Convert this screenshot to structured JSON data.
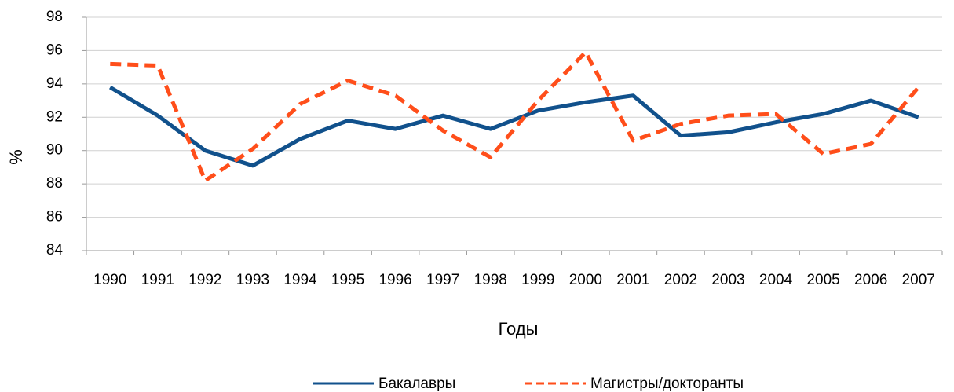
{
  "chart_data": {
    "type": "line",
    "xlabel": "Годы",
    "ylabel": "%",
    "categories": [
      "1990",
      "1991",
      "1992",
      "1993",
      "1994",
      "1995",
      "1996",
      "1997",
      "1998",
      "1999",
      "2000",
      "2001",
      "2002",
      "2003",
      "2004",
      "2005",
      "2006",
      "2007"
    ],
    "series": [
      {
        "name": "Бакалавры",
        "color": "#11518c",
        "dash": false,
        "values": [
          93.8,
          92.1,
          90.0,
          89.1,
          90.7,
          91.8,
          91.3,
          92.1,
          91.3,
          92.4,
          92.9,
          93.3,
          90.9,
          91.1,
          91.7,
          92.2,
          93.0,
          92.0
        ]
      },
      {
        "name": "Магистры/докторанты",
        "color": "#ff4e1a",
        "dash": true,
        "values": [
          95.2,
          95.1,
          88.2,
          90.1,
          92.8,
          94.2,
          93.3,
          91.2,
          89.6,
          93.0,
          95.9,
          90.6,
          91.6,
          92.1,
          92.2,
          89.8,
          90.4,
          93.8
        ]
      }
    ],
    "ylim": [
      84,
      98
    ],
    "yticks": [
      84,
      86,
      88,
      90,
      92,
      94,
      96,
      98
    ],
    "grid": true,
    "legend": "bottom"
  }
}
